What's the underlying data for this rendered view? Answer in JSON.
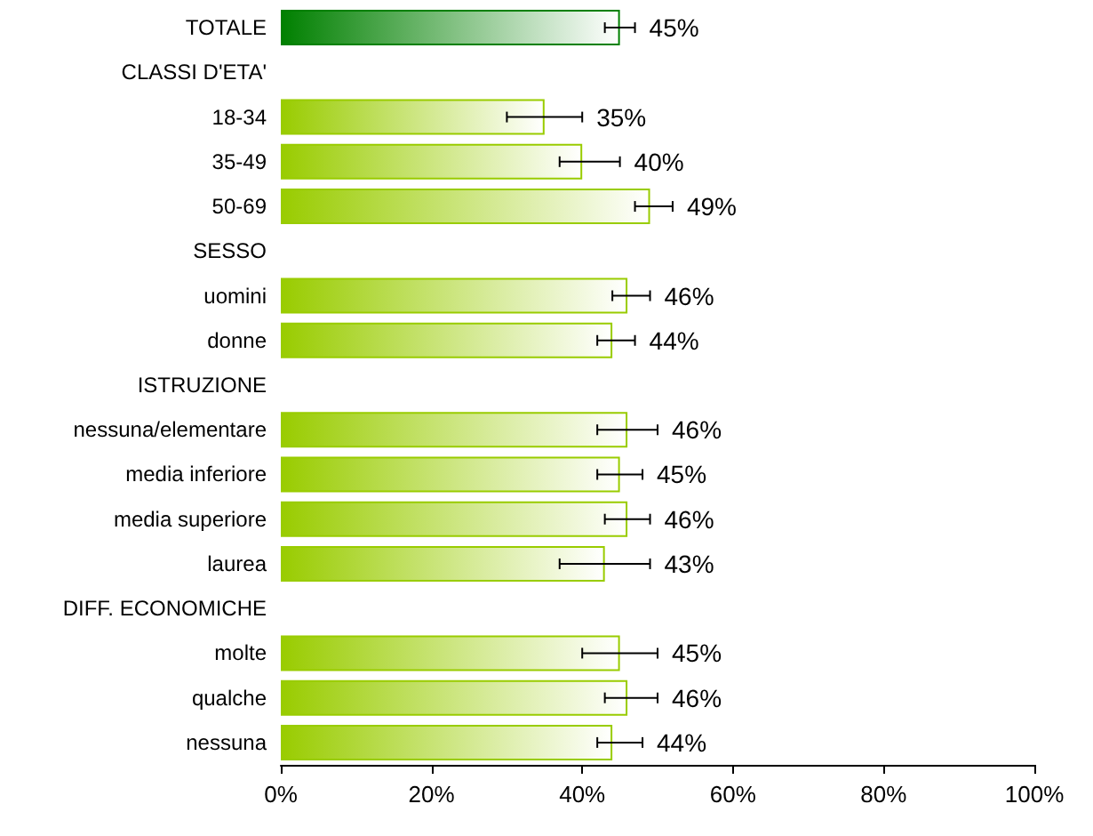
{
  "chart_data": {
    "type": "bar",
    "orientation": "horizontal",
    "categories": [
      "TOTALE",
      "CLASSI D'ETA'",
      "18-34",
      "35-49",
      "50-69",
      "SESSO",
      "uomini",
      "donne",
      "ISTRUZIONE",
      "nessuna/elementare",
      "media inferiore",
      "media superiore",
      "laurea",
      "DIFF. ECONOMICHE",
      "molte",
      "qualche",
      "nessuna"
    ],
    "values": [
      45,
      null,
      35,
      40,
      49,
      null,
      46,
      44,
      null,
      46,
      45,
      46,
      43,
      null,
      45,
      46,
      44
    ],
    "value_labels": [
      "45%",
      null,
      "35%",
      "40%",
      "49%",
      null,
      "46%",
      "44%",
      null,
      "46%",
      "45%",
      "46%",
      "43%",
      null,
      "45%",
      "46%",
      "44%"
    ],
    "errors": [
      [
        43,
        47
      ],
      null,
      [
        30,
        40
      ],
      [
        37,
        45
      ],
      [
        47,
        52
      ],
      null,
      [
        44,
        49
      ],
      [
        42,
        47
      ],
      null,
      [
        42,
        50
      ],
      [
        42,
        48
      ],
      [
        43,
        49
      ],
      [
        37,
        49
      ],
      null,
      [
        40,
        50
      ],
      [
        43,
        50
      ],
      [
        42,
        48
      ]
    ],
    "colors": [
      "#008000",
      null,
      "#99cc00",
      "#99cc00",
      "#99cc00",
      null,
      "#99cc00",
      "#99cc00",
      null,
      "#99cc00",
      "#99cc00",
      "#99cc00",
      "#99cc00",
      null,
      "#99cc00",
      "#99cc00",
      "#99cc00"
    ],
    "xlim": [
      0,
      100
    ],
    "xticks": [
      {
        "value": 0,
        "label": "0%"
      },
      {
        "value": 20,
        "label": "20%"
      },
      {
        "value": 40,
        "label": "40%"
      },
      {
        "value": 60,
        "label": "60%"
      },
      {
        "value": 80,
        "label": "80%"
      },
      {
        "value": 100,
        "label": "100%"
      }
    ],
    "grid": false
  }
}
